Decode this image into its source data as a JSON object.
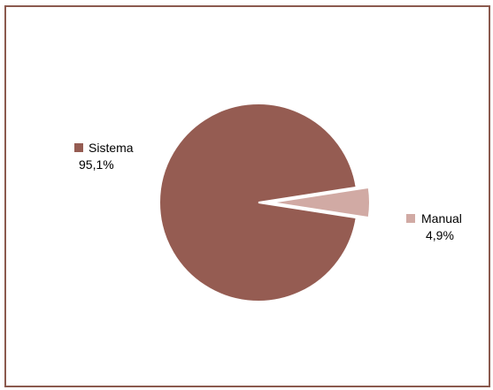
{
  "chart_data": {
    "type": "pie",
    "title": "",
    "categories": [
      "Sistema",
      "Manual"
    ],
    "values": [
      95.1,
      4.9
    ],
    "value_labels": [
      "95,1%",
      "4,9%"
    ],
    "colors": [
      "#955c52",
      "#d1aaa4"
    ],
    "exploded": [
      false,
      true
    ],
    "legend": "labels-beside-slices"
  },
  "frame": {
    "border_color": "#8b5a4e"
  }
}
